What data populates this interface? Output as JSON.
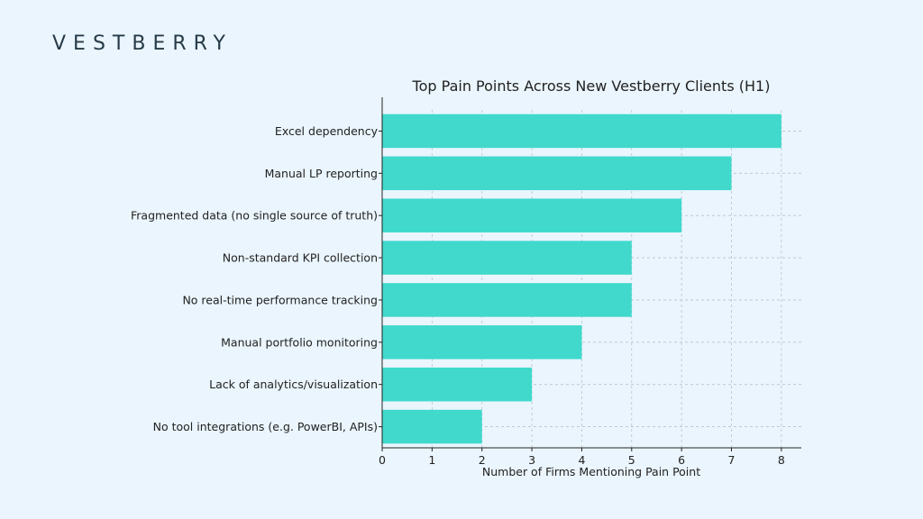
{
  "brand": {
    "name": "VESTBERRY"
  },
  "chart_data": {
    "type": "bar",
    "orientation": "horizontal",
    "title": "Top Pain Points Across New Vestberry Clients (H1)",
    "xlabel": "Number of Firms Mentioning Pain Point",
    "ylabel": "",
    "categories": [
      "Excel dependency",
      "Manual LP reporting",
      "Fragmented data (no single source of truth)",
      "Non-standard KPI collection",
      "No real-time performance tracking",
      "Manual portfolio monitoring",
      "Lack of analytics/visualization",
      "No tool integrations (e.g. PowerBI, APIs)"
    ],
    "values": [
      8,
      7,
      6,
      5,
      5,
      4,
      3,
      2
    ],
    "xlim": [
      0,
      8.4
    ],
    "xticks": [
      0,
      1,
      2,
      3,
      4,
      5,
      6,
      7,
      8
    ],
    "grid": true,
    "bar_color": "#40d9cc"
  }
}
